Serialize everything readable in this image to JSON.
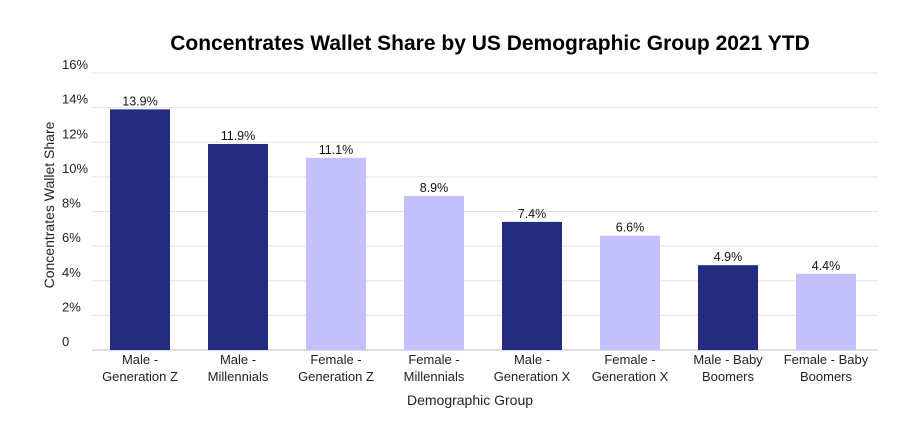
{
  "chart_data": {
    "type": "bar",
    "title": "Concentrates Wallet Share by US Demographic Group 2021 YTD",
    "xlabel": "Demographic Group",
    "ylabel": "Concentrates Wallet Share",
    "ylim": [
      0,
      16
    ],
    "yticks": [
      0,
      2,
      4,
      6,
      8,
      10,
      12,
      14,
      16
    ],
    "ytick_labels": [
      "0",
      "2%",
      "4%",
      "6%",
      "8%",
      "10%",
      "12%",
      "14%",
      "16%"
    ],
    "grid": true,
    "categories": [
      [
        "Male -",
        "Generation Z"
      ],
      [
        "Male -",
        "Millennials"
      ],
      [
        "Female -",
        "Generation Z"
      ],
      [
        "Female -",
        "Millennials"
      ],
      [
        "Male -",
        "Generation X"
      ],
      [
        "Female -",
        "Generation X"
      ],
      [
        "Male - Baby",
        "Boomers"
      ],
      [
        "Female - Baby",
        "Boomers"
      ]
    ],
    "values": [
      13.9,
      11.9,
      11.1,
      8.9,
      7.4,
      6.6,
      4.9,
      4.4
    ],
    "data_labels": [
      "13.9%",
      "11.9%",
      "11.1%",
      "8.9%",
      "7.4%",
      "6.6%",
      "4.9%",
      "4.4%"
    ],
    "colors": {
      "male": "#232c80",
      "female": "#c3c0fd"
    },
    "bar_groups": [
      "male",
      "male",
      "female",
      "female",
      "male",
      "female",
      "male",
      "female"
    ]
  }
}
